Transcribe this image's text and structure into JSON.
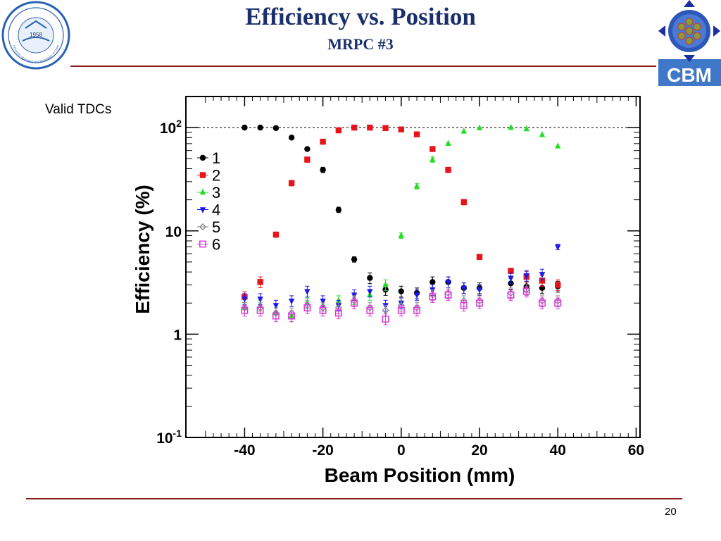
{
  "slide": {
    "title": "Efficiency vs. Position",
    "subtitle": "MRPC #3",
    "side_label": "Valid TDCs",
    "page_number": "20",
    "cbm_logo_text": "CBM",
    "ustc_logo_year": "1958",
    "ustc_logo_text": "University of Science and Technology of China"
  },
  "colors": {
    "title": "#1b2f6b",
    "rule": "#8b1a1a",
    "series": {
      "1": "#000000",
      "2": "#e8141b",
      "3": "#22dd22",
      "4": "#1a1aee",
      "5": "#888888",
      "6": "#dd33dd"
    }
  },
  "chart_data": {
    "type": "scatter",
    "title": "",
    "xlabel": "Beam Position (mm)",
    "ylabel": "Efficiency (%)",
    "xlim": [
      -55,
      61
    ],
    "ylim": [
      0.1,
      200
    ],
    "yscale": "log",
    "xticks": [
      "-40",
      "-20",
      "0",
      "20",
      "40",
      "60"
    ],
    "yticks": [
      {
        "value": 0.1,
        "base": "10",
        "exp": "-1"
      },
      {
        "value": 1,
        "base": "1",
        "exp": ""
      },
      {
        "value": 10,
        "base": "10",
        "exp": ""
      },
      {
        "value": 100,
        "base": "10",
        "exp": "2"
      }
    ],
    "reference_line": {
      "y": 100,
      "style": "dashed"
    },
    "grid": false,
    "legend_position": "left",
    "series": [
      {
        "name": "1",
        "marker": "circle",
        "x": [
          -40,
          -36,
          -32,
          -28,
          -24,
          -20,
          -16,
          -12,
          -8,
          -4,
          0,
          4,
          8,
          12,
          16,
          20,
          28,
          32,
          36,
          40
        ],
        "y": [
          100,
          100,
          99,
          80,
          62,
          39,
          16,
          5.3,
          3.5,
          2.7,
          2.6,
          2.5,
          3.2,
          3.2,
          2.8,
          2.8,
          3.1,
          2.9,
          2.8,
          2.9
        ]
      },
      {
        "name": "2",
        "marker": "square",
        "x": [
          -40,
          -36,
          -32,
          -28,
          -24,
          -20,
          -16,
          -12,
          -8,
          -4,
          0,
          4,
          8,
          12,
          16,
          20,
          28,
          32,
          36,
          40
        ],
        "y": [
          2.3,
          3.2,
          9.2,
          29,
          49,
          73,
          94,
          100,
          100,
          99,
          96,
          86,
          62,
          39,
          19,
          5.6,
          4.1,
          3.6,
          3.3,
          3.0
        ]
      },
      {
        "name": "3",
        "marker": "triangle-up",
        "x": [
          -40,
          -36,
          -32,
          -28,
          -24,
          -20,
          -16,
          -12,
          -8,
          -4,
          0,
          4,
          8,
          12,
          16,
          20,
          28,
          32,
          36,
          40
        ],
        "y": [
          1.8,
          1.9,
          1.6,
          1.5,
          2.0,
          1.9,
          2.1,
          2.2,
          2.4,
          3.0,
          9.0,
          27,
          49,
          70,
          92,
          99,
          100,
          97,
          85,
          66
        ]
      },
      {
        "name": "4",
        "marker": "triangle-down",
        "x": [
          -40,
          -36,
          -32,
          -28,
          -24,
          -20,
          -16,
          -12,
          -8,
          -4,
          0,
          4,
          8,
          12,
          16,
          20,
          28,
          32,
          36,
          40
        ],
        "y": [
          2.2,
          2.2,
          1.9,
          2.1,
          2.6,
          2.1,
          1.9,
          2.4,
          2.6,
          1.9,
          2.0,
          2.4,
          2.7,
          3.2,
          2.8,
          2.7,
          3.5,
          3.7,
          3.8,
          7.0
        ]
      },
      {
        "name": "5",
        "marker": "diamond-open",
        "x": [
          -40,
          -36,
          -32,
          -28,
          -24,
          -20,
          -16,
          -12,
          -8,
          -4,
          0,
          4,
          8,
          12,
          16,
          20,
          28,
          32,
          36,
          40
        ],
        "y": [
          1.8,
          1.8,
          1.6,
          1.6,
          1.9,
          1.8,
          1.8,
          2.1,
          1.8,
          1.7,
          1.9,
          1.8,
          2.4,
          2.5,
          2.1,
          2.1,
          2.5,
          2.7,
          2.1,
          2.1
        ]
      },
      {
        "name": "6",
        "marker": "square-open",
        "x": [
          -40,
          -36,
          -32,
          -28,
          -24,
          -20,
          -16,
          -12,
          -8,
          -4,
          0,
          4,
          8,
          12,
          16,
          20,
          28,
          32,
          36,
          40
        ],
        "y": [
          1.7,
          1.7,
          1.5,
          1.5,
          1.8,
          1.7,
          1.6,
          2.0,
          1.7,
          1.4,
          1.7,
          1.7,
          2.3,
          2.4,
          1.9,
          2.0,
          2.4,
          2.6,
          2.0,
          2.0
        ]
      }
    ]
  }
}
